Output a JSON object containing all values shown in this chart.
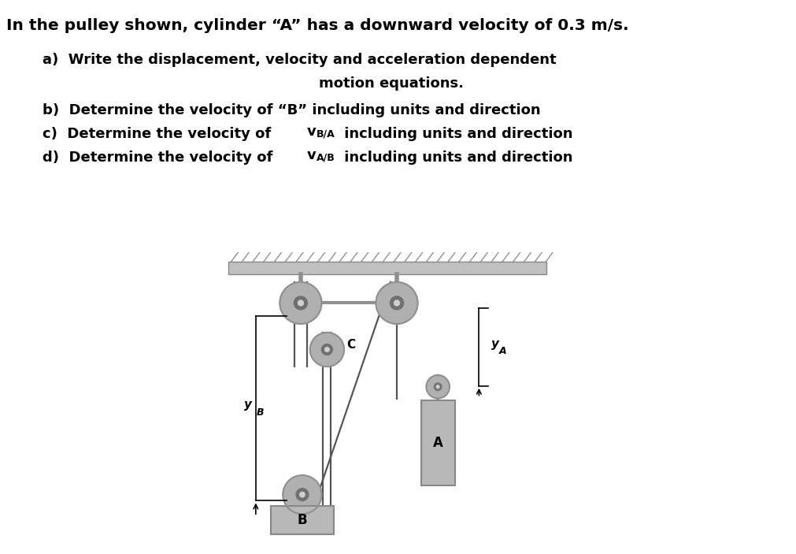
{
  "title_line": "In the pulley shown, cylinder “A” has a downward velocity of 0.3 m/s.",
  "line_a1": "a)  Write the displacement, velocity and acceleration dependent",
  "line_a2": "motion equations.",
  "line_b": "b)  Determine the velocity of “B” including units and direction",
  "bg_color": "#ffffff",
  "text_color": "#000000",
  "fig_width": 10.11,
  "fig_height": 7.03,
  "dpi": 100
}
